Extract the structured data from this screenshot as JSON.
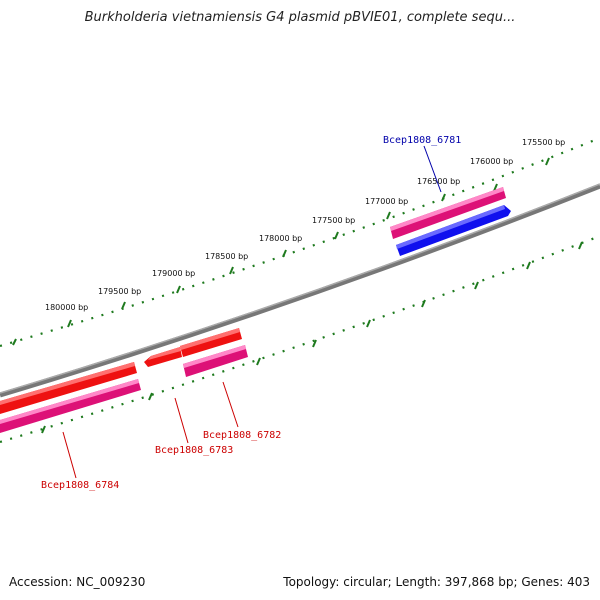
{
  "title": "Burkholderia vietnamiensis G4 plasmid pBVIE01, complete sequ...",
  "footer": {
    "accession": "Accession: NC_009230",
    "summary": "Topology: circular; Length: 397,868 bp; Genes: 403"
  },
  "colors": {
    "backbone": "#7a7a7a",
    "ticks": "#1e7a1e",
    "forward_cds": "#ee1111",
    "forward_cds_highlight": "#ff8080",
    "reverse_cds": "#dd1177",
    "reverse_cds_highlight": "#ff88c8",
    "blue_cds": "#1010ee",
    "label_red": "#cc0000",
    "label_blue": "#0000aa"
  },
  "scale": {
    "labels": [
      "175500 bp",
      "176000 bp",
      "176500 bp",
      "177000 bp",
      "177500 bp",
      "178000 bp",
      "178500 bp",
      "179000 bp",
      "179500 bp",
      "180000 bp"
    ]
  },
  "genes": [
    {
      "name": "Bcep1808_6781",
      "color": "blue"
    },
    {
      "name": "Bcep1808_6782",
      "color": "red"
    },
    {
      "name": "Bcep1808_6783",
      "color": "red"
    },
    {
      "name": "Bcep1808_6784",
      "color": "red"
    }
  ]
}
